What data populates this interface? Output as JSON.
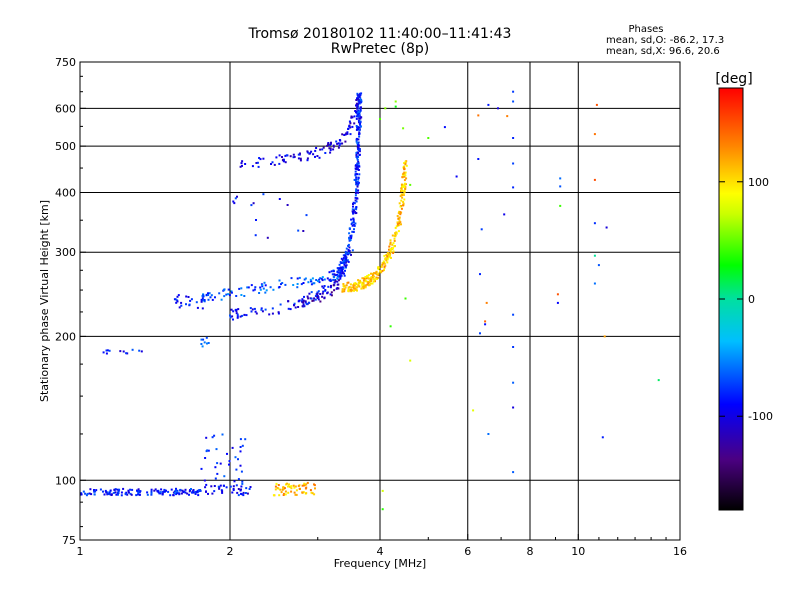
{
  "chart_data": {
    "type": "scatter",
    "title": "Tromsø 20180102 11:40:00–11:41:43",
    "subtitle": "RwPretec (8p)",
    "xlabel": "Frequency [MHz]",
    "ylabel": "Stationary phase Virtual Height [km]",
    "xscale": "log",
    "yscale": "log",
    "xlim": [
      1,
      16
    ],
    "ylim": [
      75,
      750
    ],
    "xticks": [
      1,
      2,
      4,
      6,
      8,
      10,
      16
    ],
    "yticks": [
      75,
      100,
      200,
      300,
      400,
      500,
      600,
      750
    ],
    "x_gridlines": [
      2,
      4,
      6,
      8,
      10
    ],
    "y_gridlines": [
      100,
      200,
      300,
      400,
      500,
      600
    ],
    "grid": true,
    "stats": {
      "title": "Phases",
      "line_o": "mean, sd,O: -86.2, 17.3",
      "line_x": "mean, sd,X:  96.6, 20.6"
    },
    "colorbar": {
      "label": "[deg]",
      "range": [
        -180,
        180
      ],
      "ticks": [
        100,
        0,
        -100
      ]
    },
    "series": [
      {
        "color_phase": -85,
        "shape": "band",
        "x_range": [
          1.0,
          1.75
        ],
        "y_range": [
          93,
          96
        ],
        "count": 150
      },
      {
        "color_phase": -90,
        "shape": "band",
        "x_range": [
          1.78,
          2.2
        ],
        "y_range": [
          93,
          98
        ],
        "count": 40
      },
      {
        "color_phase": -85,
        "shape": "scatter",
        "x_range": [
          1.75,
          2.15
        ],
        "y_range": [
          98,
          125
        ],
        "count": 35
      },
      {
        "color_phase": 115,
        "shape": "scatter",
        "x_range": [
          2.45,
          3.0
        ],
        "y_range": [
          93,
          99
        ],
        "count": 60
      },
      {
        "color_phase": -90,
        "shape": "curve",
        "x": [
          2.0,
          2.2,
          2.5,
          2.8,
          3.0,
          3.2,
          3.35,
          3.5
        ],
        "y": [
          222,
          224,
          228,
          236,
          245,
          258,
          275,
          300
        ],
        "count": 120
      },
      {
        "color_phase": -70,
        "shape": "curve",
        "x": [
          1.75,
          2.0,
          2.3,
          2.6,
          2.9,
          3.2,
          3.4
        ],
        "y": [
          240,
          246,
          252,
          258,
          262,
          268,
          275
        ],
        "count": 110
      },
      {
        "color_phase": -85,
        "shape": "curve",
        "x": [
          3.3,
          3.45,
          3.55,
          3.6,
          3.62,
          3.63,
          3.64
        ],
        "y": [
          270,
          300,
          360,
          430,
          500,
          580,
          640
        ],
        "count": 260
      },
      {
        "color_phase": -100,
        "shape": "curve",
        "x": [
          2.1,
          2.5,
          2.8,
          3.1,
          3.3,
          3.45,
          3.55,
          3.62
        ],
        "y": [
          460,
          466,
          474,
          490,
          505,
          530,
          570,
          640
        ],
        "count": 110
      },
      {
        "color_phase": -90,
        "shape": "scatter",
        "x_range": [
          1.55,
          1.8
        ],
        "y_range": [
          228,
          245
        ],
        "count": 25
      },
      {
        "color_phase": 110,
        "shape": "curve",
        "x": [
          3.35,
          3.6,
          3.8,
          4.0,
          4.2,
          4.35,
          4.45,
          4.5
        ],
        "y": [
          252,
          256,
          262,
          272,
          300,
          340,
          400,
          460
        ],
        "count": 280
      },
      {
        "color_phase": -120,
        "shape": "curve",
        "x": [
          2.8,
          3.0,
          3.15,
          3.25,
          3.3
        ],
        "y": [
          235,
          240,
          246,
          252,
          258
        ],
        "count": 30
      },
      {
        "color_phase": -90,
        "shape": "scatter",
        "x_range": [
          1.1,
          1.35
        ],
        "y_range": [
          184,
          188
        ],
        "count": 12
      },
      {
        "color_phase": -70,
        "shape": "scatter",
        "x_range": [
          1.75,
          1.82
        ],
        "y_range": [
          190,
          200
        ],
        "count": 8
      },
      {
        "color_phase": -90,
        "shape": "scatter",
        "x_range": [
          2.0,
          2.9
        ],
        "y_range": [
          320,
          400
        ],
        "count": 15
      },
      {
        "color_phase": 60,
        "shape": "sparse",
        "points": [
          [
            4.1,
            600
          ],
          [
            4.3,
            620
          ],
          [
            4.45,
            545
          ],
          [
            4.0,
            570
          ],
          [
            4.6,
            415
          ],
          [
            5.0,
            520
          ],
          [
            4.2,
            210
          ],
          [
            4.5,
            240
          ],
          [
            4.05,
            95
          ],
          [
            4.05,
            87
          ],
          [
            4.6,
            178
          ],
          [
            6.15,
            140
          ]
        ]
      },
      {
        "color_phase": -80,
        "shape": "sparse",
        "points": [
          [
            5.4,
            548
          ],
          [
            5.7,
            432
          ],
          [
            6.3,
            470
          ],
          [
            6.4,
            335
          ],
          [
            6.5,
            212
          ],
          [
            6.6,
            610
          ],
          [
            6.6,
            125
          ],
          [
            6.9,
            600
          ],
          [
            7.1,
            360
          ],
          [
            7.4,
            650
          ],
          [
            7.4,
            620
          ],
          [
            7.4,
            520
          ],
          [
            7.4,
            460
          ],
          [
            7.4,
            410
          ],
          [
            7.4,
            222
          ],
          [
            7.4,
            190
          ],
          [
            7.4,
            160
          ],
          [
            7.4,
            142
          ],
          [
            7.4,
            104
          ],
          [
            6.35,
            270
          ],
          [
            6.35,
            203
          ],
          [
            9.2,
            428
          ],
          [
            9.2,
            412
          ],
          [
            9.1,
            235
          ],
          [
            10.8,
            345
          ],
          [
            11.0,
            282
          ],
          [
            11.4,
            338
          ],
          [
            11.2,
            123
          ],
          [
            10.8,
            258
          ]
        ]
      },
      {
        "color_phase": 140,
        "shape": "sparse",
        "points": [
          [
            6.3,
            580
          ],
          [
            6.5,
            215
          ],
          [
            6.55,
            235
          ],
          [
            7.2,
            578
          ],
          [
            9.1,
            245
          ],
          [
            10.9,
            610
          ],
          [
            11.3,
            200
          ],
          [
            10.8,
            425
          ],
          [
            10.8,
            530
          ]
        ]
      },
      {
        "color_phase": 20,
        "shape": "sparse",
        "points": [
          [
            9.2,
            375
          ],
          [
            14.5,
            162
          ],
          [
            10.8,
            295
          ],
          [
            4.3,
            605
          ]
        ]
      }
    ]
  }
}
